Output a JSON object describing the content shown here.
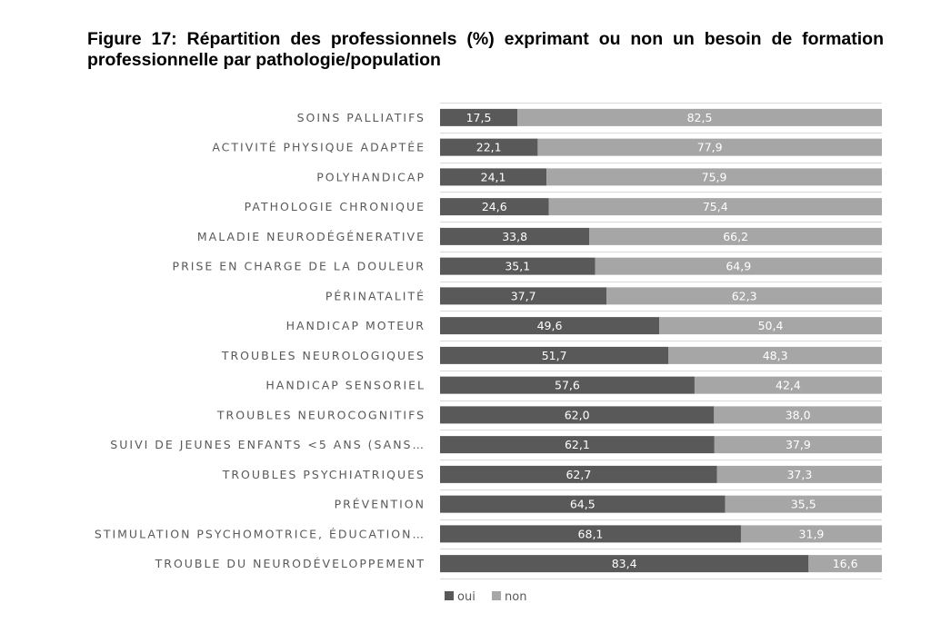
{
  "title": "Figure 17: Répartition des professionnels (%) exprimant ou non un besoin de formation professionnelle par pathologie/population",
  "colors": {
    "oui": "#595959",
    "non": "#a6a6a6",
    "grid": "#d9d9d9",
    "label": "#595959"
  },
  "chart_data": {
    "type": "bar",
    "orientation": "horizontal",
    "stacked": true,
    "percent_stacked": true,
    "categories": [
      "SOINS PALLIATIFS",
      "ACTIVITÉ PHYSIQUE ADAPTÉE",
      "POLYHANDICAP",
      "PATHOLOGIE CHRONIQUE",
      "MALADIE NEURODÉGÉNERATIVE",
      "PRISE EN CHARGE DE LA DOULEUR",
      "PÉRINATALITÉ",
      "HANDICAP MOTEUR",
      "TROUBLES NEUROLOGIQUES",
      "HANDICAP SENSORIEL",
      "TROUBLES NEUROCOGNITIFS",
      "SUIVI DE JEUNES ENFANTS <5 ANS (SANS…",
      "TROUBLES PSYCHIATRIQUES",
      "PRÉVENTION",
      "STIMULATION PSYCHOMOTRICE, ÉDUCATION…",
      "TROUBLE DU NEURODÉVELOPPEMENT"
    ],
    "series": [
      {
        "name": "oui",
        "color": "#595959",
        "values": [
          17.5,
          22.1,
          24.1,
          24.6,
          33.8,
          35.1,
          37.7,
          49.6,
          51.7,
          57.6,
          62.0,
          62.1,
          62.7,
          64.5,
          68.1,
          83.4
        ],
        "labels": [
          "17,5",
          "22,1",
          "24,1",
          "24,6",
          "33,8",
          "35,1",
          "37,7",
          "49,6",
          "51,7",
          "57,6",
          "62,0",
          "62,1",
          "62,7",
          "64,5",
          "68,1",
          "83,4"
        ]
      },
      {
        "name": "non",
        "color": "#a6a6a6",
        "values": [
          82.5,
          77.9,
          75.9,
          75.4,
          66.2,
          64.9,
          62.3,
          50.4,
          48.3,
          42.4,
          38.0,
          37.9,
          37.3,
          35.5,
          31.9,
          16.6
        ],
        "labels": [
          "82,5",
          "77,9",
          "75,9",
          "75,4",
          "66,2",
          "64,9",
          "62,3",
          "50,4",
          "48,3",
          "42,4",
          "38,0",
          "37,9",
          "37,3",
          "35,5",
          "31,9",
          "16,6"
        ]
      }
    ],
    "xlim": [
      0,
      100
    ],
    "grid": true,
    "legend_position": "bottom-left",
    "data_labels": true
  }
}
